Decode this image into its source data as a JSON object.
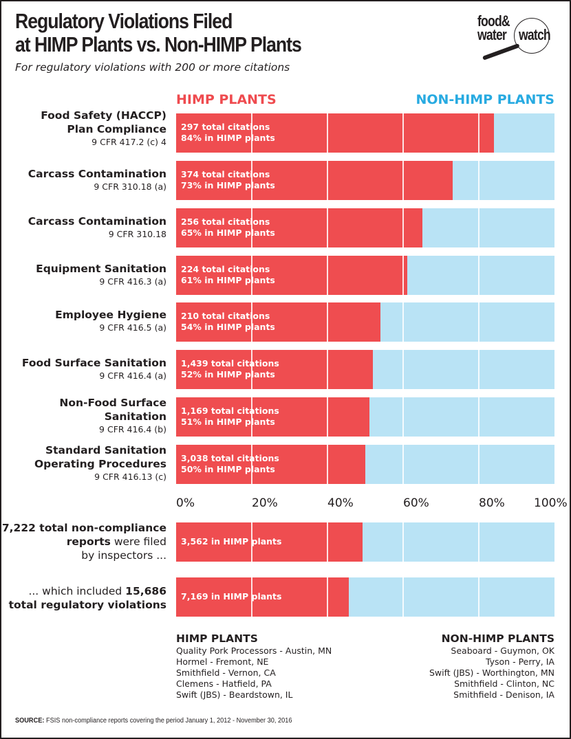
{
  "header": {
    "title_line1": "Regulatory Violations Filed",
    "title_line2": "at HIMP Plants vs. Non-HIMP Plants",
    "subtitle": "For regulatory violations with 200 or more citations",
    "logo": {
      "line1": "food&",
      "line2": "water",
      "line3": "watch",
      "icon": "magnifying-glass-icon"
    }
  },
  "colors": {
    "himp": "#ef4d50",
    "non_himp": "#b9e3f5",
    "himp_legend": "#ef4b4f",
    "non_himp_legend": "#27aae1"
  },
  "chart_data": [
    {
      "type": "bar",
      "orientation": "horizontal-stacked-100",
      "title": "Regulatory Violations Filed at HIMP Plants vs. Non-HIMP Plants",
      "subtitle": "For regulatory violations with 200 or more citations",
      "legend": [
        "HIMP PLANTS",
        "NON-HIMP PLANTS"
      ],
      "legend_placement": "top",
      "xlim": [
        0,
        100
      ],
      "xticks": [
        "0%",
        "20%",
        "40%",
        "60%",
        "80%",
        "100%"
      ],
      "grid": true,
      "categories": [
        {
          "name": "Food Safety (HACCP) Plan Compliance",
          "name_lines": [
            "Food Safety (HACCP)",
            "Plan Compliance"
          ],
          "cfr": "9 CFR 417.2 (c) 4",
          "total": "297 total citations",
          "pct_label": "84% in HIMP plants",
          "himp_pct": 84
        },
        {
          "name": "Carcass Contamination",
          "name_lines": [
            "Carcass Contamination"
          ],
          "cfr": "9 CFR 310.18 (a)",
          "total": "374 total citations",
          "pct_label": "73% in HIMP plants",
          "himp_pct": 73
        },
        {
          "name": "Carcass Contamination",
          "name_lines": [
            "Carcass Contamination"
          ],
          "cfr": "9 CFR 310.18",
          "total": "256 total citations",
          "pct_label": "65% in HIMP plants",
          "himp_pct": 65
        },
        {
          "name": "Equipment Sanitation",
          "name_lines": [
            "Equipment Sanitation"
          ],
          "cfr": "9 CFR 416.3 (a)",
          "total": "224 total citations",
          "pct_label": "61% in HIMP plants",
          "himp_pct": 61
        },
        {
          "name": "Employee Hygiene",
          "name_lines": [
            "Employee Hygiene"
          ],
          "cfr": "9 CFR 416.5 (a)",
          "total": "210 total citations",
          "pct_label": "54% in HIMP plants",
          "himp_pct": 54
        },
        {
          "name": "Food Surface Sanitation",
          "name_lines": [
            "Food Surface Sanitation"
          ],
          "cfr": "9 CFR 416.4 (a)",
          "total": "1,439 total citations",
          "pct_label": "52% in HIMP plants",
          "himp_pct": 52
        },
        {
          "name": "Non-Food Surface Sanitation",
          "name_lines": [
            "Non-Food Surface",
            "Sanitation"
          ],
          "cfr": "9 CFR 416.4 (b)",
          "total": "1,169 total citations",
          "pct_label": "51% in HIMP plants",
          "himp_pct": 51
        },
        {
          "name": "Standard Sanitation Operating Procedures",
          "name_lines": [
            "Standard Sanitation",
            "Operating Procedures"
          ],
          "cfr": "9 CFR 416.13 (c)",
          "total": "3,038 total citations",
          "pct_label": "50% in HIMP plants",
          "himp_pct": 50
        }
      ],
      "series": [
        {
          "name": "HIMP PLANTS",
          "values": [
            84,
            73,
            65,
            61,
            54,
            52,
            51,
            50
          ]
        },
        {
          "name": "NON-HIMP PLANTS",
          "values": [
            16,
            27,
            35,
            39,
            46,
            48,
            49,
            50
          ]
        }
      ]
    },
    {
      "type": "bar",
      "orientation": "horizontal-stacked-100",
      "categories": [
        {
          "label_parts": [
            {
              "b": "7,222 total non-compliance"
            },
            {
              "b": "reports",
              "t": " were filed"
            },
            {
              "t": "by inspectors ..."
            }
          ],
          "total": 7222,
          "himp": 3562,
          "bar_label": "3,562 in HIMP plants"
        },
        {
          "label_parts": [
            {
              "t": "... which included ",
              "b": "15,686"
            },
            {
              "b": "total regulatory violations"
            }
          ],
          "total": 15686,
          "himp": 7169,
          "bar_label": "7,169 in HIMP plants"
        }
      ],
      "series": [
        {
          "name": "HIMP PLANTS",
          "values": [
            3562,
            7169
          ]
        },
        {
          "name": "NON-HIMP PLANTS",
          "values": [
            3660,
            8517
          ]
        }
      ]
    }
  ],
  "plants": {
    "himp": {
      "heading": "HIMP PLANTS",
      "items": [
        "Quality Pork Processors - Austin, MN",
        "Hormel - Fremont, NE",
        "Smithfield - Vernon, CA",
        "Clemens - Hatfield, PA",
        "Swift (JBS) - Beardstown, IL"
      ]
    },
    "non_himp": {
      "heading": "NON-HIMP PLANTS",
      "items": [
        "Seaboard - Guymon, OK",
        "Tyson - Perry, IA",
        "Swift (JBS) - Worthington, MN",
        "Smithfield - Clinton, NC",
        "Smithfield - Denison, IA"
      ]
    }
  },
  "source": {
    "label": "SOURCE:",
    "text": " FSIS non-compliance reports covering the period January 1, 2012 - November 30, 2016"
  }
}
